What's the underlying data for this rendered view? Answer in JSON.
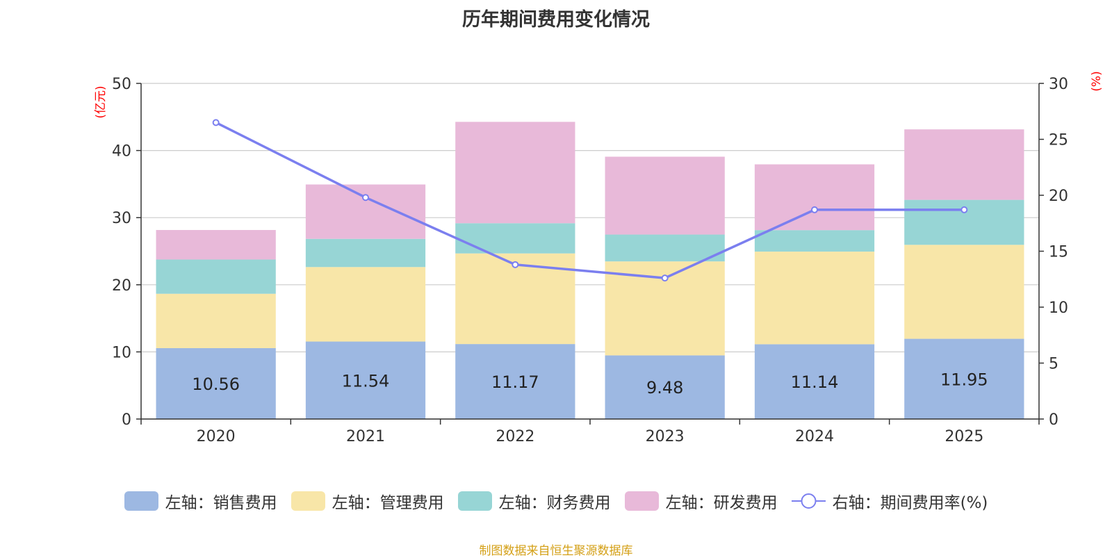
{
  "chart_data": {
    "type": "bar",
    "stacked": true,
    "title": "历年期间费用变化情况",
    "categories": [
      "2020",
      "2021",
      "2022",
      "2023",
      "2024",
      "2025"
    ],
    "y_left": {
      "unit_label": "(亿元)",
      "ylim": [
        0,
        50
      ],
      "ticks": [
        0,
        10,
        20,
        30,
        40,
        50
      ]
    },
    "y_right": {
      "unit_label": "(%)",
      "ylim": [
        0,
        30
      ],
      "ticks": [
        0,
        5,
        10,
        15,
        20,
        25,
        30
      ]
    },
    "series": [
      {
        "name": "左轴：销售费用",
        "axis": "left",
        "color": "#9db8e2",
        "values": [
          10.56,
          11.54,
          11.17,
          9.48,
          11.14,
          11.95
        ],
        "show_labels": true
      },
      {
        "name": "左轴：管理费用",
        "axis": "left",
        "color": "#f8e6a8",
        "values": [
          8.1,
          11.1,
          13.5,
          14.0,
          13.8,
          14.0
        ],
        "show_labels": false
      },
      {
        "name": "左轴：财务费用",
        "axis": "left",
        "color": "#97d5d5",
        "values": [
          5.1,
          4.2,
          4.5,
          4.0,
          3.2,
          6.7
        ],
        "show_labels": false
      },
      {
        "name": "左轴：研发费用",
        "axis": "left",
        "color": "#e8b9d9",
        "values": [
          4.4,
          8.1,
          15.1,
          11.6,
          9.8,
          10.5
        ],
        "show_labels": false
      }
    ],
    "line_series": {
      "name": "右轴：期间费用率(%)",
      "axis": "right",
      "color": "#7b7fef",
      "values": [
        26.5,
        19.8,
        13.8,
        12.6,
        18.7,
        18.7
      ]
    },
    "grid": true,
    "legend_position": "bottom"
  },
  "axis_label_color": "#ff0000",
  "source_text": "制图数据来自恒生聚源数据库",
  "source_color": "#d4a017"
}
